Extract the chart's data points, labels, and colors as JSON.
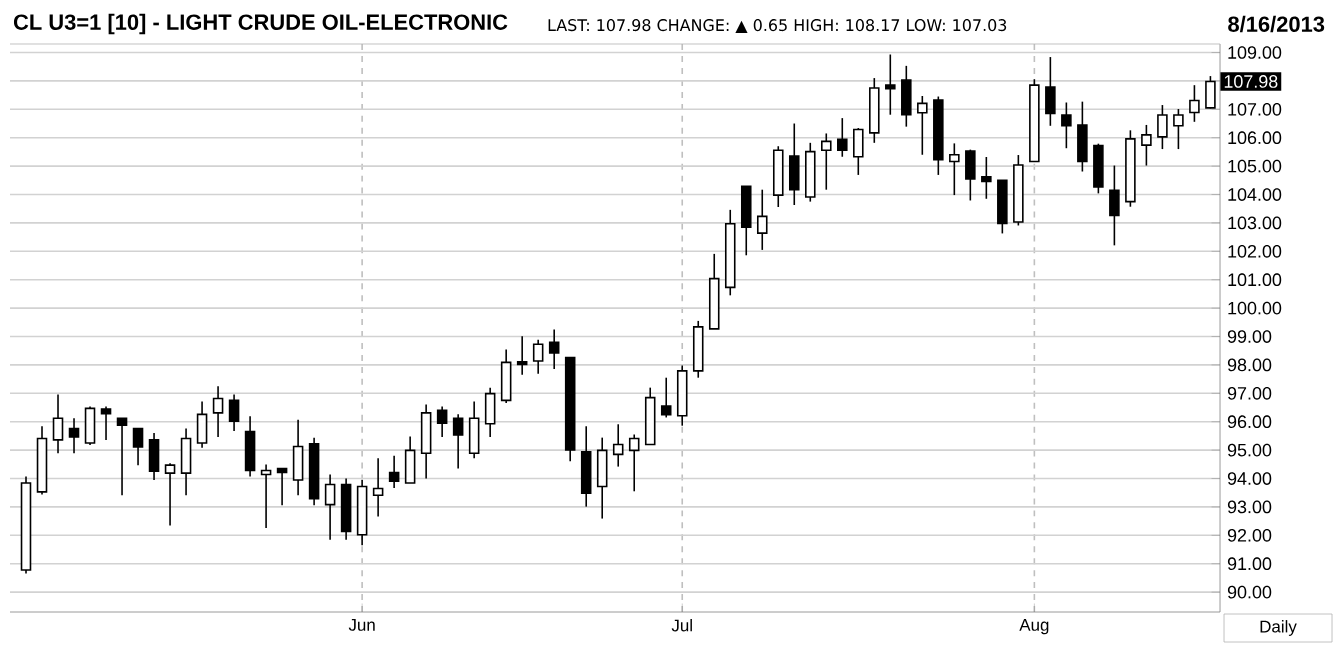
{
  "chart_data": {
    "type": "candlestick",
    "title": "CL U3=1 [10] - LIGHT CRUDE OIL-ELECTRONIC",
    "subtitle": "LAST: 107.98   CHANGE: ▲ 0.65   HIGH: 108.17   LOW: 107.03",
    "annotations": [
      "8/16/2013",
      "Daily",
      {
        "text": "107.98",
        "y": 107.98
      }
    ],
    "categories": [
      null,
      null,
      null,
      null,
      null,
      null,
      null,
      null,
      null,
      null,
      null,
      null,
      null,
      null,
      null,
      null,
      null,
      null,
      null,
      null,
      null,
      "Jun",
      null,
      null,
      null,
      null,
      null,
      null,
      null,
      null,
      null,
      null,
      null,
      null,
      null,
      null,
      null,
      null,
      null,
      null,
      null,
      "Jul",
      null,
      null,
      null,
      null,
      null,
      null,
      null,
      null,
      null,
      null,
      null,
      null,
      null,
      null,
      null,
      null,
      null,
      null,
      null,
      null,
      null,
      "Aug",
      null,
      null,
      null,
      null,
      null,
      null,
      null,
      null,
      null,
      null,
      null
    ],
    "color": "#000000",
    "ohlc": [
      [
        90.78,
        94.07,
        90.66,
        93.84
      ],
      [
        93.53,
        95.84,
        93.44,
        95.41
      ],
      [
        95.36,
        96.96,
        94.89,
        96.12
      ],
      [
        95.76,
        96.12,
        94.89,
        95.46
      ],
      [
        95.25,
        96.54,
        95.18,
        96.47
      ],
      [
        96.45,
        96.54,
        95.36,
        96.28
      ],
      [
        96.12,
        96.12,
        93.41,
        95.88
      ],
      [
        95.76,
        95.76,
        94.47,
        95.11
      ],
      [
        95.36,
        95.6,
        93.95,
        94.26
      ],
      [
        94.19,
        94.54,
        92.35,
        94.47
      ],
      [
        94.19,
        95.76,
        93.41,
        95.41
      ],
      [
        95.25,
        96.71,
        95.08,
        96.26
      ],
      [
        96.31,
        97.25,
        95.46,
        96.82
      ],
      [
        96.75,
        96.96,
        95.67,
        96.02
      ],
      [
        95.65,
        96.19,
        94.07,
        94.28
      ],
      [
        94.14,
        94.49,
        92.26,
        94.28
      ],
      [
        94.35,
        94.35,
        93.06,
        94.21
      ],
      [
        93.95,
        96.07,
        93.41,
        95.13
      ],
      [
        95.22,
        95.44,
        93.06,
        93.29
      ],
      [
        93.08,
        94.14,
        91.84,
        93.79
      ],
      [
        93.79,
        94.0,
        91.84,
        92.14
      ],
      [
        92.02,
        93.95,
        91.65,
        93.72
      ],
      [
        93.41,
        94.71,
        92.66,
        93.65
      ],
      [
        94.21,
        94.8,
        93.67,
        93.91
      ],
      [
        93.84,
        95.48,
        93.84,
        94.99
      ],
      [
        94.89,
        96.61,
        94.0,
        96.31
      ],
      [
        96.4,
        96.54,
        95.46,
        95.95
      ],
      [
        96.12,
        96.26,
        94.35,
        95.53
      ],
      [
        94.89,
        96.71,
        94.71,
        96.12
      ],
      [
        95.93,
        97.2,
        95.46,
        96.99
      ],
      [
        96.75,
        98.54,
        96.66,
        98.09
      ],
      [
        98.11,
        99.01,
        97.65,
        98.02
      ],
      [
        98.14,
        98.89,
        97.69,
        98.73
      ],
      [
        98.8,
        99.25,
        97.86,
        98.42
      ],
      [
        98.26,
        98.28,
        94.61,
        95.01
      ],
      [
        94.94,
        95.84,
        93.01,
        93.48
      ],
      [
        93.72,
        95.44,
        92.59,
        94.99
      ],
      [
        94.85,
        95.91,
        94.42,
        95.2
      ],
      [
        94.99,
        95.55,
        93.55,
        95.41
      ],
      [
        95.2,
        97.2,
        95.2,
        96.85
      ],
      [
        96.55,
        97.55,
        96.15,
        96.25
      ],
      [
        96.21,
        97.98,
        95.86,
        97.79
      ],
      [
        97.79,
        99.55,
        97.55,
        99.34
      ],
      [
        99.27,
        101.91,
        99.27,
        101.04
      ],
      [
        100.73,
        103.46,
        100.45,
        102.97
      ],
      [
        104.29,
        104.29,
        101.86,
        102.85
      ],
      [
        102.64,
        104.17,
        102.05,
        103.23
      ],
      [
        103.98,
        105.7,
        103.56,
        105.56
      ],
      [
        105.35,
        106.5,
        103.63,
        104.17
      ],
      [
        103.91,
        105.82,
        103.75,
        105.51
      ],
      [
        105.56,
        106.15,
        104.17,
        105.87
      ],
      [
        105.94,
        106.69,
        105.33,
        105.56
      ],
      [
        105.33,
        106.34,
        104.69,
        106.29
      ],
      [
        106.17,
        108.1,
        105.82,
        107.75
      ],
      [
        107.85,
        108.93,
        106.81,
        107.73
      ],
      [
        108.03,
        108.53,
        106.39,
        106.81
      ],
      [
        106.88,
        107.47,
        105.4,
        107.21
      ],
      [
        107.33,
        107.45,
        104.69,
        105.23
      ],
      [
        105.16,
        105.8,
        103.98,
        105.4
      ],
      [
        105.53,
        105.58,
        103.79,
        104.55
      ],
      [
        104.62,
        105.32,
        103.85,
        104.46
      ],
      [
        104.5,
        104.5,
        102.63,
        102.98
      ],
      [
        103.03,
        105.39,
        102.91,
        105.04
      ],
      [
        105.16,
        108.06,
        105.16,
        107.85
      ],
      [
        107.78,
        108.84,
        106.42,
        106.85
      ],
      [
        106.8,
        107.24,
        105.63,
        106.42
      ],
      [
        106.45,
        107.27,
        104.81,
        105.16
      ],
      [
        105.72,
        105.79,
        104.04,
        104.27
      ],
      [
        104.15,
        105.02,
        102.21,
        103.26
      ],
      [
        103.75,
        106.26,
        103.57,
        105.96
      ],
      [
        105.74,
        106.45,
        105.02,
        106.1
      ],
      [
        106.03,
        107.15,
        105.6,
        106.8
      ],
      [
        106.42,
        107.01,
        105.6,
        106.8
      ],
      [
        106.89,
        107.85,
        106.56,
        107.31
      ],
      [
        107.05,
        108.17,
        107.03,
        107.98
      ]
    ],
    "ylim": [
      89.3,
      109.3
    ],
    "yticks": [
      {
        "value": 90,
        "label": "90.00"
      },
      {
        "value": 91,
        "label": "91.00"
      },
      {
        "value": 92,
        "label": "92.00"
      },
      {
        "value": 93,
        "label": "93.00"
      },
      {
        "value": 94,
        "label": "94.00"
      },
      {
        "value": 95,
        "label": "95.00"
      },
      {
        "value": 96,
        "label": "96.00"
      },
      {
        "value": 97,
        "label": "97.00"
      },
      {
        "value": 98,
        "label": "98.00"
      },
      {
        "value": 99,
        "label": "99.00"
      },
      {
        "value": 100,
        "label": "100.00"
      },
      {
        "value": 101,
        "label": "101.00"
      },
      {
        "value": 102,
        "label": "102.00"
      },
      {
        "value": 103,
        "label": "103.00"
      },
      {
        "value": 104,
        "label": "104.00"
      },
      {
        "value": 105,
        "label": "105.00"
      },
      {
        "value": 106,
        "label": "106.00"
      },
      {
        "value": 107,
        "label": "107.00"
      },
      {
        "value": 108,
        "label": null
      },
      {
        "value": 109,
        "label": "109.00"
      }
    ],
    "grid": true
  }
}
